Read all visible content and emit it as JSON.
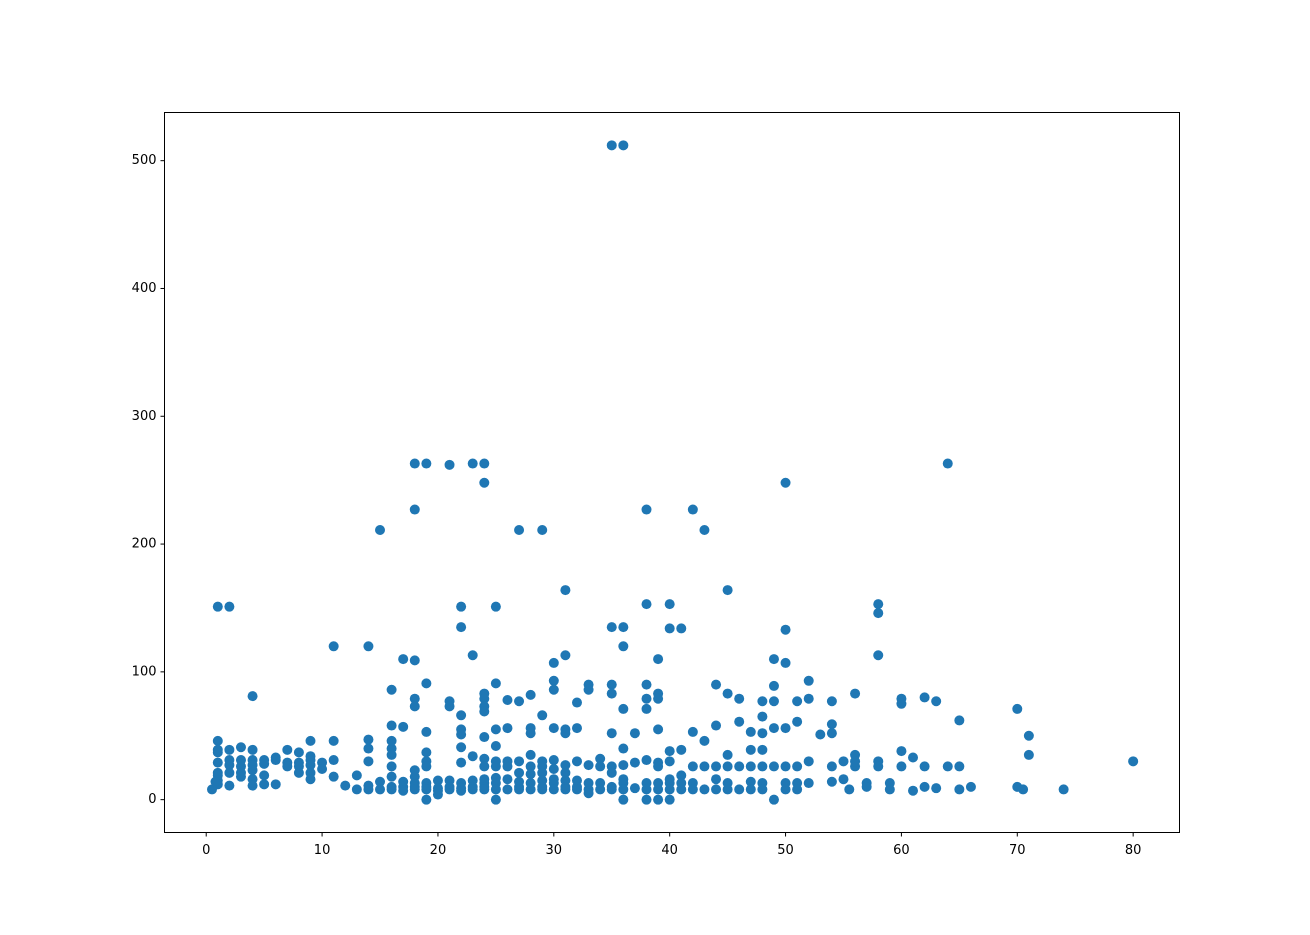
{
  "chart_data": {
    "type": "scatter",
    "color": "#1f77b4",
    "grid": false,
    "xlim": [
      -3.6,
      84
    ],
    "ylim": [
      -25.7,
      537.7
    ],
    "xticks": [
      0,
      10,
      20,
      30,
      40,
      50,
      60,
      70,
      80
    ],
    "yticks": [
      0,
      100,
      200,
      300,
      400,
      500
    ],
    "x": [
      35,
      36,
      18,
      19,
      21,
      23,
      24,
      64,
      24,
      50,
      18,
      38,
      42,
      15,
      27,
      29,
      43,
      31,
      45,
      1,
      2,
      22,
      25,
      38,
      40,
      58,
      58,
      22,
      35,
      36,
      40,
      41,
      50,
      11,
      14,
      36,
      23,
      31,
      58,
      17,
      18,
      39,
      49,
      30,
      50,
      52,
      30,
      19,
      25,
      33,
      35,
      38,
      44,
      49,
      16,
      30,
      33,
      4,
      24,
      28,
      35,
      39,
      45,
      56,
      62,
      18,
      24,
      26,
      27,
      38,
      39,
      46,
      51,
      52,
      54,
      60,
      60,
      63,
      21,
      21,
      18,
      24,
      32,
      36,
      38,
      48,
      49,
      70,
      22,
      29,
      24,
      46,
      48,
      51,
      65,
      54,
      16,
      17,
      26,
      28,
      30,
      31,
      32,
      39,
      44,
      49,
      50,
      19,
      22,
      25,
      28,
      31,
      35,
      37,
      42,
      47,
      48,
      53,
      54,
      71,
      24,
      22,
      25,
      22,
      14,
      16,
      19,
      23,
      24,
      36,
      40,
      41,
      43,
      45,
      47,
      48,
      60,
      56,
      71,
      80,
      1,
      1,
      1,
      1,
      1,
      1,
      1,
      1,
      0.5,
      0.8,
      2,
      2,
      2,
      2,
      2,
      3,
      3,
      3,
      3,
      3,
      4,
      4,
      4,
      4,
      4,
      4,
      5,
      5,
      5,
      5,
      6,
      6,
      6,
      7,
      7,
      7,
      8,
      8,
      8,
      8,
      9,
      9,
      9,
      9,
      9,
      9,
      10,
      10,
      11,
      11,
      11,
      12,
      13,
      13,
      14,
      14,
      14,
      14,
      15,
      15,
      16,
      16,
      16,
      16,
      16,
      16,
      17,
      17,
      17,
      18,
      18,
      18,
      18,
      18,
      19,
      19,
      19,
      19,
      19,
      19,
      20,
      20,
      20,
      20,
      21,
      21,
      21,
      22,
      22,
      22,
      22,
      23,
      23,
      23,
      24,
      24,
      24,
      24,
      24,
      25,
      25,
      25,
      25,
      25,
      25,
      26,
      26,
      26,
      26,
      27,
      27,
      27,
      27,
      27,
      28,
      28,
      28,
      28,
      28,
      29,
      29,
      29,
      29,
      29,
      29,
      30,
      30,
      30,
      30,
      30,
      31,
      31,
      31,
      31,
      31,
      32,
      32,
      32,
      32,
      33,
      33,
      33,
      33,
      34,
      34,
      34,
      34,
      35,
      35,
      35,
      35,
      36,
      36,
      36,
      36,
      36,
      37,
      37,
      38,
      38,
      38,
      38,
      39,
      39,
      39,
      39,
      39,
      40,
      40,
      40,
      40,
      40,
      41,
      41,
      41,
      42,
      42,
      42,
      43,
      43,
      44,
      44,
      44,
      45,
      45,
      45,
      46,
      46,
      47,
      47,
      47,
      48,
      48,
      48,
      49,
      49,
      50,
      50,
      50,
      51,
      51,
      51,
      52,
      52,
      54,
      54,
      55,
      55,
      55.5,
      56,
      56,
      57,
      57,
      58,
      58,
      59,
      59,
      60,
      61,
      61,
      62,
      62,
      63,
      64,
      65,
      65,
      66,
      70,
      70.5,
      74
    ],
    "values": [
      512,
      512,
      263,
      263,
      262,
      263,
      263,
      263,
      248,
      248,
      227,
      227,
      227,
      211,
      211,
      211,
      211,
      164,
      164,
      151,
      151,
      151,
      151,
      153,
      153,
      153,
      146,
      135,
      135,
      135,
      134,
      134,
      133,
      120,
      120,
      120,
      113,
      113,
      113,
      110,
      109,
      110,
      110,
      107,
      107,
      93,
      93,
      91,
      91,
      90,
      90,
      90,
      90,
      89,
      86,
      86,
      86,
      81,
      83,
      82,
      83,
      83,
      83,
      83,
      80,
      79,
      79,
      78,
      77,
      79,
      79,
      79,
      77,
      79,
      77,
      79,
      75,
      77,
      77,
      73,
      73,
      73,
      76,
      71,
      71,
      77,
      77,
      71,
      66,
      66,
      69,
      61,
      65,
      61,
      62,
      59,
      58,
      57,
      56,
      56,
      56,
      55,
      56,
      55,
      58,
      56,
      56,
      53,
      55,
      55,
      52,
      52,
      52,
      52,
      53,
      53,
      52,
      51,
      52,
      50,
      49,
      51,
      42,
      41,
      40,
      40,
      37,
      34,
      32,
      40,
      38,
      39,
      46,
      35,
      39,
      39,
      38,
      35,
      35,
      30,
      46,
      39,
      37,
      29,
      21,
      19,
      15,
      12,
      8,
      14,
      39,
      31,
      27,
      21,
      11,
      41,
      31,
      26,
      21,
      18,
      39,
      31,
      27,
      23,
      16,
      11,
      31,
      28,
      19,
      12,
      33,
      31,
      12,
      39,
      29,
      26,
      37,
      29,
      26,
      21,
      46,
      34,
      31,
      27,
      21,
      16,
      29,
      24,
      46,
      31,
      18,
      11,
      19,
      8,
      47,
      30,
      11,
      8,
      14,
      8,
      46,
      35,
      26,
      18,
      10,
      8,
      14,
      10,
      7,
      23,
      18,
      13,
      10,
      8,
      30,
      26,
      13,
      10,
      8,
      0,
      15,
      9,
      7,
      4,
      15,
      10,
      8,
      29,
      13,
      9,
      7,
      15,
      10,
      8,
      26,
      16,
      13,
      10,
      8,
      30,
      26,
      17,
      13,
      8,
      0,
      30,
      26,
      16,
      8,
      30,
      21,
      14,
      10,
      8,
      35,
      26,
      20,
      13,
      8,
      30,
      26,
      21,
      15,
      10,
      8,
      31,
      24,
      16,
      13,
      8,
      27,
      21,
      15,
      10,
      8,
      30,
      15,
      10,
      8,
      27,
      13,
      8,
      5,
      32,
      26,
      13,
      8,
      26,
      21,
      10,
      8,
      27,
      16,
      13,
      8,
      0,
      29,
      9,
      31,
      13,
      8,
      0,
      29,
      26,
      13,
      8,
      0,
      30,
      16,
      13,
      8,
      0,
      19,
      13,
      8,
      26,
      13,
      8,
      26,
      8,
      26,
      16,
      8,
      26,
      13,
      8,
      26,
      8,
      26,
      14,
      8,
      26,
      13,
      8,
      26,
      0,
      26,
      13,
      8,
      26,
      13,
      8,
      30,
      13,
      26,
      14,
      30,
      16,
      8,
      26,
      30,
      13,
      10,
      30,
      26,
      13,
      8,
      26,
      33,
      7,
      26,
      10,
      9,
      26,
      26,
      8,
      10,
      10,
      8,
      8
    ]
  }
}
